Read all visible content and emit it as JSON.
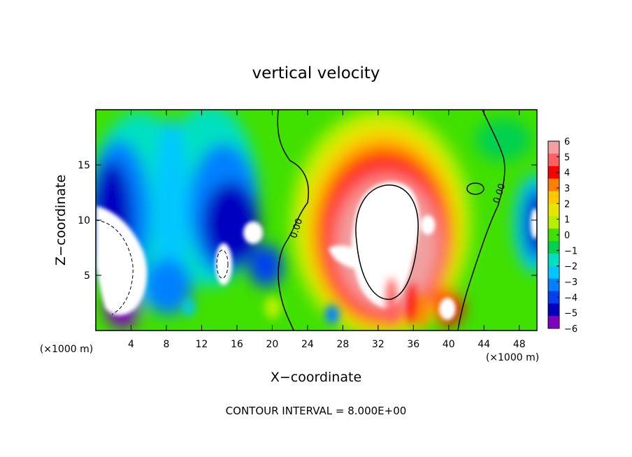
{
  "chart_data": {
    "type": "heatmap",
    "title": "vertical velocity",
    "xlabel": "X−coordinate",
    "ylabel": "Z−coordinate",
    "x_unit_left": "(×1000 m)",
    "x_unit_right": "(×1000 m)",
    "xlim": [
      0,
      50
    ],
    "ylim": [
      0,
      20
    ],
    "xticks": [
      4,
      8,
      12,
      16,
      20,
      24,
      28,
      32,
      36,
      40,
      44,
      48
    ],
    "yticks": [
      5,
      10,
      15
    ],
    "footer": "CONTOUR INTERVAL = 8.000E+00",
    "contour_labels": [
      "0.00",
      "0.00"
    ],
    "colorbar": {
      "ticks": [
        "6",
        "5",
        "4",
        "3",
        "2",
        "1",
        "0",
        "−1",
        "−2",
        "−3",
        "−4",
        "−5",
        "−6"
      ],
      "range": [
        -6,
        6
      ],
      "colors": [
        "#f0a0a0",
        "#ff6060",
        "#ff0000",
        "#ff8000",
        "#ffc800",
        "#e6e600",
        "#b4f000",
        "#40e000",
        "#00d050",
        "#00e0c0",
        "#00c8ff",
        "#0080ff",
        "#0040f0",
        "#0000c0",
        "#8000c0"
      ]
    },
    "features": [
      {
        "kind": "updraft",
        "x": 33,
        "z": 8.5,
        "w": 6
      },
      {
        "kind": "updraft",
        "x": 40,
        "z": 1.8,
        "w": 6
      },
      {
        "kind": "downdraft",
        "x": 2,
        "z": 6,
        "w": -6
      },
      {
        "kind": "downdraft",
        "x": 14.5,
        "z": 7,
        "w": -6
      },
      {
        "kind": "downdraft",
        "x": 18,
        "z": 9.5,
        "w": -6
      },
      {
        "kind": "downdraft",
        "x": 49.5,
        "z": 9.5,
        "w": -6
      }
    ]
  }
}
